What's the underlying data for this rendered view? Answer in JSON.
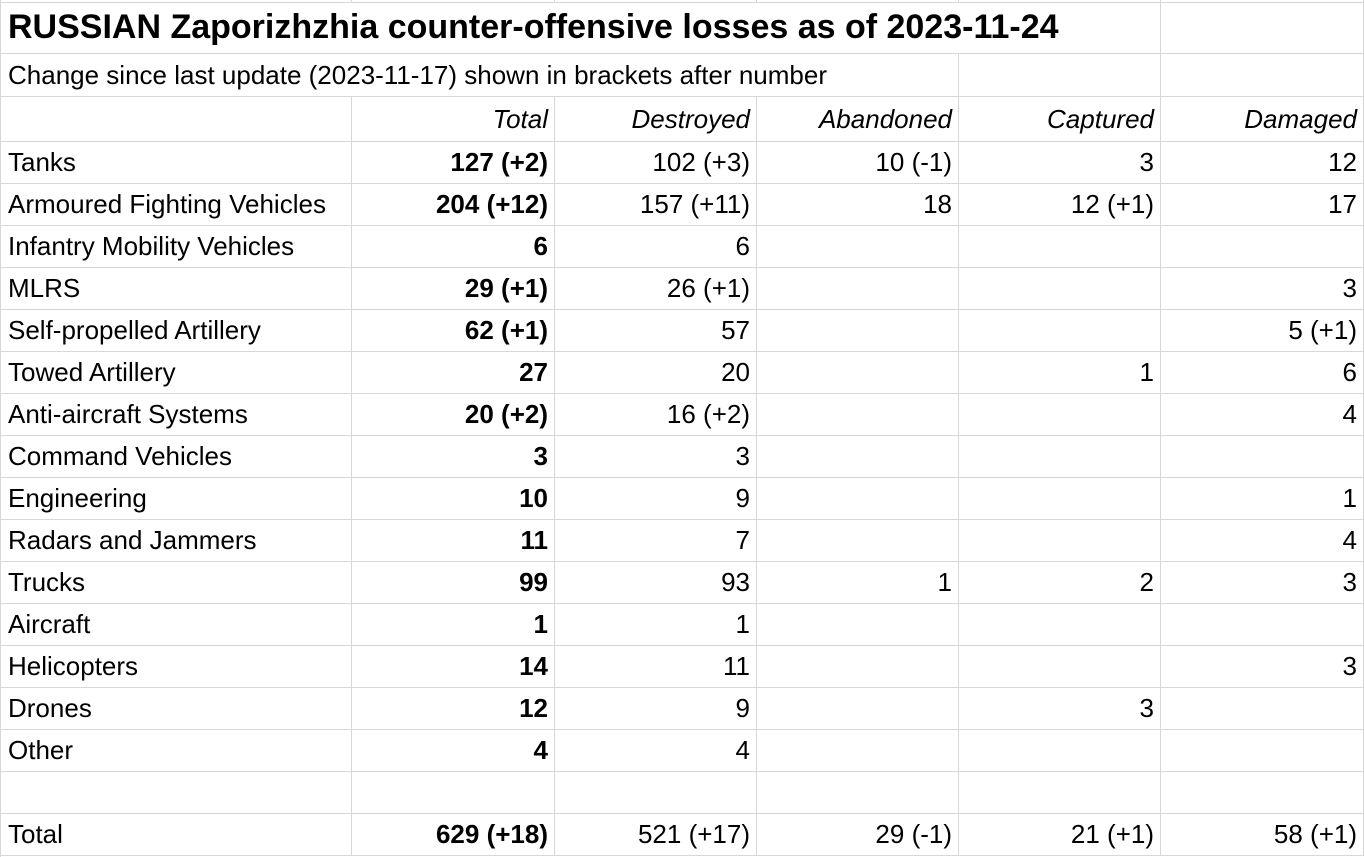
{
  "sheet": {
    "title": "RUSSIAN Zaporizhzhia counter-offensive losses as of 2023-11-24",
    "subtitle": "Change since last update (2023-11-17) shown in brackets after number",
    "column_headers": [
      "Total",
      "Destroyed",
      "Abandoned",
      "Captured",
      "Damaged"
    ],
    "rows": [
      {
        "label": "Tanks",
        "total": "127 (+2)",
        "destroyed": "102 (+3)",
        "abandoned": "10 (-1)",
        "captured": "3",
        "damaged": "12"
      },
      {
        "label": "Armoured Fighting Vehicles",
        "total": "204 (+12)",
        "destroyed": "157 (+11)",
        "abandoned": "18",
        "captured": "12 (+1)",
        "damaged": "17"
      },
      {
        "label": "Infantry Mobility Vehicles",
        "total": "6",
        "destroyed": "6",
        "abandoned": "",
        "captured": "",
        "damaged": ""
      },
      {
        "label": "MLRS",
        "total": "29 (+1)",
        "destroyed": "26 (+1)",
        "abandoned": "",
        "captured": "",
        "damaged": "3"
      },
      {
        "label": "Self-propelled Artillery",
        "total": "62 (+1)",
        "destroyed": "57",
        "abandoned": "",
        "captured": "",
        "damaged": "5 (+1)"
      },
      {
        "label": "Towed Artillery",
        "total": "27",
        "destroyed": "20",
        "abandoned": "",
        "captured": "1",
        "damaged": "6"
      },
      {
        "label": "Anti-aircraft Systems",
        "total": "20 (+2)",
        "destroyed": "16 (+2)",
        "abandoned": "",
        "captured": "",
        "damaged": "4"
      },
      {
        "label": "Command Vehicles",
        "total": "3",
        "destroyed": "3",
        "abandoned": "",
        "captured": "",
        "damaged": ""
      },
      {
        "label": "Engineering",
        "total": "10",
        "destroyed": "9",
        "abandoned": "",
        "captured": "",
        "damaged": "1"
      },
      {
        "label": "Radars and Jammers",
        "total": "11",
        "destroyed": "7",
        "abandoned": "",
        "captured": "",
        "damaged": "4"
      },
      {
        "label": "Trucks",
        "total": "99",
        "destroyed": "93",
        "abandoned": "1",
        "captured": "2",
        "damaged": "3"
      },
      {
        "label": "Aircraft",
        "total": "1",
        "destroyed": "1",
        "abandoned": "",
        "captured": "",
        "damaged": ""
      },
      {
        "label": "Helicopters",
        "total": "14",
        "destroyed": "11",
        "abandoned": "",
        "captured": "",
        "damaged": "3"
      },
      {
        "label": "Drones",
        "total": "12",
        "destroyed": "9",
        "abandoned": "",
        "captured": "3",
        "damaged": ""
      },
      {
        "label": "Other",
        "total": "4",
        "destroyed": "4",
        "abandoned": "",
        "captured": "",
        "damaged": ""
      },
      {
        "label": "",
        "total": "",
        "destroyed": "",
        "abandoned": "",
        "captured": "",
        "damaged": ""
      },
      {
        "label": "Total",
        "total": "629 (+18)",
        "destroyed": "521 (+17)",
        "abandoned": "29 (-1)",
        "captured": "21 (+1)",
        "damaged": "58 (+1)"
      }
    ],
    "colors": {
      "gridline": "#d8d8d8",
      "text": "#000000",
      "background": "#ffffff"
    }
  }
}
